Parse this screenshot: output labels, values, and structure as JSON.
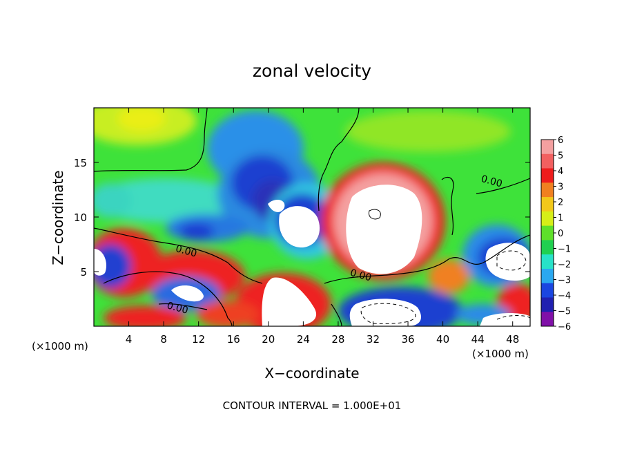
{
  "chart_data": {
    "type": "heatmap",
    "title": "zonal velocity",
    "xlabel": "X−coordinate",
    "ylabel": "Z−coordinate",
    "x_unit_left": "(×1000 m)",
    "x_unit_right": "(×1000 m)",
    "footer": "CONTOUR INTERVAL = 1.000E+01",
    "xlim": [
      0,
      50
    ],
    "ylim": [
      0,
      20
    ],
    "x_ticks": [
      "4",
      "8",
      "12",
      "16",
      "20",
      "24",
      "28",
      "32",
      "36",
      "40",
      "44",
      "48"
    ],
    "x_tick_values": [
      4,
      8,
      12,
      16,
      20,
      24,
      28,
      32,
      36,
      40,
      44,
      48
    ],
    "y_ticks": [
      "5",
      "10",
      "15"
    ],
    "y_tick_values": [
      5,
      10,
      15
    ],
    "colorbar": {
      "labels": [
        "6",
        "5",
        "4",
        "3",
        "2",
        "1",
        "0",
        "−1",
        "−2",
        "−3",
        "−4",
        "−5",
        "−6"
      ],
      "values": [
        6,
        5,
        4,
        3,
        2,
        1,
        0,
        -1,
        -2,
        -3,
        -4,
        -5,
        -6
      ],
      "colors": [
        "#f4a0a0",
        "#f26060",
        "#ee1c1c",
        "#f08020",
        "#f2c81a",
        "#d6ee18",
        "#5ee02a",
        "#20d050",
        "#28e2c8",
        "#2aa8f0",
        "#1a46e0",
        "#2020b0",
        "#8010a8"
      ]
    },
    "contour_labels": [
      {
        "text": "0.00",
        "x": 10.5,
        "z": 6.6
      },
      {
        "text": "0.00",
        "x": 9.5,
        "z": 1.4
      },
      {
        "text": "0.00",
        "x": 30.5,
        "z": 4.4
      },
      {
        "text": "0.00",
        "x": 45.5,
        "z": 13.0
      }
    ]
  }
}
